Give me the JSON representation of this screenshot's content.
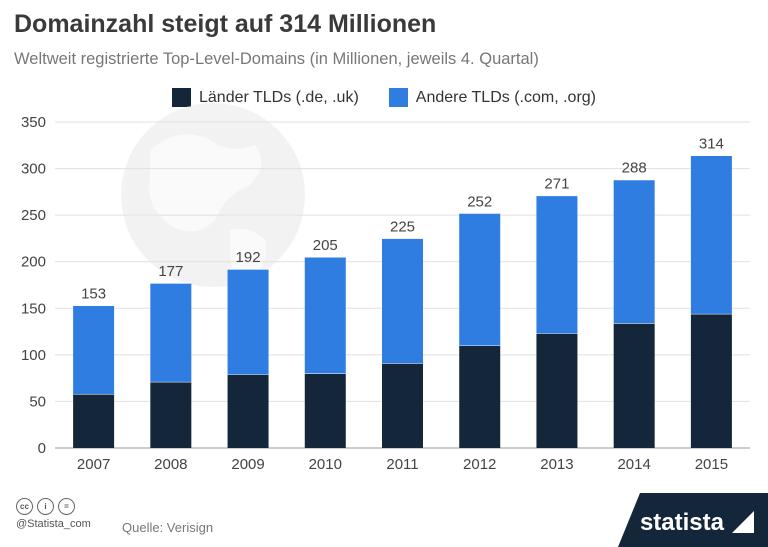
{
  "header": {
    "title": "Domainzahl steigt auf 314 Millionen",
    "subtitle": "Weltweit registrierte Top-Level-Domains (in Millionen, jeweils 4. Quartal)"
  },
  "legend": [
    {
      "label": "Länder TLDs (.de, .uk)",
      "color": "#14263a"
    },
    {
      "label": "Andere TLDs (.com, .org)",
      "color": "#2f7de1"
    }
  ],
  "chart_data": {
    "type": "bar",
    "stacked": true,
    "categories": [
      "2007",
      "2008",
      "2009",
      "2010",
      "2011",
      "2012",
      "2013",
      "2014",
      "2015"
    ],
    "series": [
      {
        "name": "Länder TLDs (.de, .uk)",
        "color": "#14263a",
        "values": [
          58,
          71,
          79,
          80,
          91,
          110,
          123,
          134,
          144
        ]
      },
      {
        "name": "Andere TLDs (.com, .org)",
        "color": "#2f7de1",
        "values": [
          95,
          106,
          113,
          125,
          134,
          142,
          148,
          154,
          170
        ]
      }
    ],
    "totals": [
      "153",
      "177",
      "192",
      "205",
      "225",
      "252",
      "271",
      "288",
      "314"
    ],
    "yticks": [
      "0",
      "50",
      "100",
      "150",
      "200",
      "250",
      "300",
      "350"
    ],
    "ylim": [
      0,
      350
    ],
    "grid": true,
    "legend_position": "top"
  },
  "footer": {
    "cc_icons": [
      "cc",
      "i",
      "="
    ],
    "handle": "@Statista_com",
    "source": "Quelle: Verisign",
    "brand": "statista",
    "brand_color": "#14263a"
  }
}
